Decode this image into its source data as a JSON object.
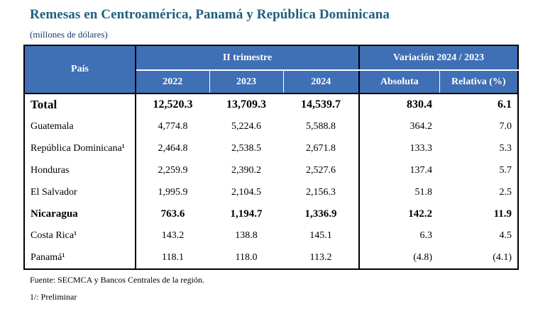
{
  "title": "Remesas en Centroamérica, Panamá y República Dominicana",
  "subtitle": "(millones de dólares)",
  "table": {
    "header": {
      "pais": "País",
      "group1": "II trimestre",
      "group2": "Variación 2024 / 2023",
      "years": [
        "2022",
        "2023",
        "2024"
      ],
      "absoluta": "Absoluta",
      "relativa": "Relativa (%)"
    },
    "rows": [
      {
        "name": "Total",
        "v2022": "12,520.3",
        "v2023": "13,709.3",
        "v2024": "14,539.7",
        "abs": "830.4",
        "rel": "6.1"
      },
      {
        "name": "Guatemala",
        "v2022": "4,774.8",
        "v2023": "5,224.6",
        "v2024": "5,588.8",
        "abs": "364.2",
        "rel": "7.0"
      },
      {
        "name": "República Dominicana¹",
        "v2022": "2,464.8",
        "v2023": "2,538.5",
        "v2024": "2,671.8",
        "abs": "133.3",
        "rel": "5.3"
      },
      {
        "name": "Honduras",
        "v2022": "2,259.9",
        "v2023": "2,390.2",
        "v2024": "2,527.6",
        "abs": "137.4",
        "rel": "5.7"
      },
      {
        "name": "El Salvador",
        "v2022": "1,995.9",
        "v2023": "2,104.5",
        "v2024": "2,156.3",
        "abs": "51.8",
        "rel": "2.5"
      },
      {
        "name": "Nicaragua",
        "v2022": "763.6",
        "v2023": "1,194.7",
        "v2024": "1,336.9",
        "abs": "142.2",
        "rel": "11.9"
      },
      {
        "name": "Costa Rica¹",
        "v2022": "143.2",
        "v2023": "138.8",
        "v2024": "145.1",
        "abs": "6.3",
        "rel": "4.5"
      },
      {
        "name": "Panamá¹",
        "v2022": "118.1",
        "v2023": "118.0",
        "v2024": "113.2",
        "abs": "(4.8)",
        "rel": "(4.1)"
      }
    ]
  },
  "footer": {
    "source": "Fuente: SECMCA y Bancos Centrales de la región.",
    "note": "1/: Preliminar"
  },
  "colors": {
    "header_bg": "#3f6fb5",
    "title": "#1f5f7f",
    "border": "#000000"
  }
}
